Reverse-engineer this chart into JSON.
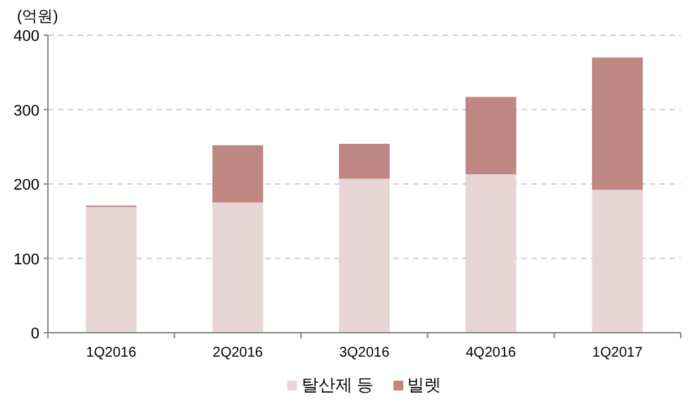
{
  "chart_data": {
    "type": "bar",
    "stacked": true,
    "ylabel": "(억원)",
    "categories": [
      "1Q2016",
      "2Q2016",
      "3Q2016",
      "4Q2016",
      "1Q2017"
    ],
    "series": [
      {
        "name": "탈산제 등",
        "color": "#e8d6d6",
        "values": [
          169,
          175,
          207,
          213,
          192
        ]
      },
      {
        "name": "빌렛",
        "color": "#bf8682",
        "values": [
          2,
          77,
          47,
          104,
          178
        ]
      }
    ],
    "ylim": [
      0,
      400
    ],
    "yticks": [
      0,
      100,
      200,
      300,
      400
    ],
    "grid": "y",
    "legend": "bottom"
  }
}
